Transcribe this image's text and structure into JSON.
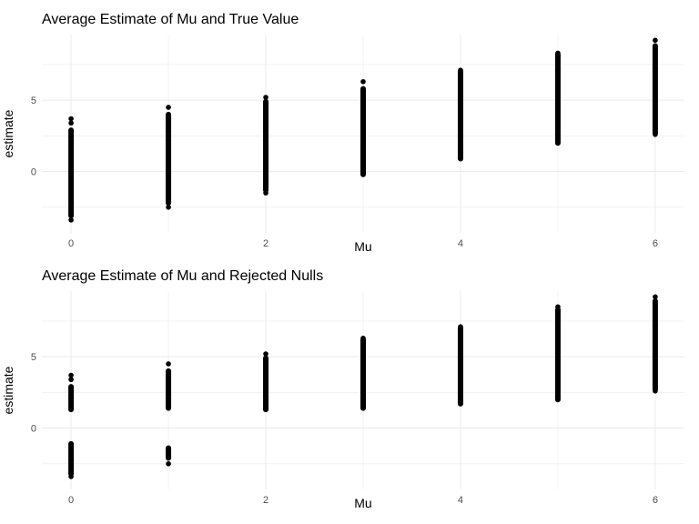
{
  "chart_data": [
    {
      "type": "scatter",
      "title": "Average Estimate of Mu and True Value",
      "xlabel": "Mu",
      "ylabel": "estimate",
      "xlim": [
        -0.3,
        6.3
      ],
      "ylim": [
        -4.3,
        9.6
      ],
      "x_ticks": [
        0,
        2,
        4,
        6
      ],
      "y_ticks": [
        0,
        5
      ],
      "grid": true,
      "series": [
        {
          "ranges": [
            {
              "x": 0,
              "segments": [
                [
                  -3.1,
                  2.9
                ]
              ],
              "points": [
                3.4,
                3.7,
                -3.4
              ]
            },
            {
              "x": 1,
              "segments": [
                [
                  -2.2,
                  4.0
                ]
              ],
              "points": [
                4.5,
                -2.5
              ]
            },
            {
              "x": 2,
              "segments": [
                [
                  -1.3,
                  4.9
                ]
              ],
              "points": [
                5.2,
                -1.5
              ]
            },
            {
              "x": 3,
              "segments": [
                [
                  -0.2,
                  5.8
                ]
              ],
              "points": [
                6.3
              ]
            },
            {
              "x": 4,
              "segments": [
                [
                  0.9,
                  7.0
                ]
              ],
              "points": [
                7.1
              ]
            },
            {
              "x": 5,
              "segments": [
                [
                  2.0,
                  8.2
                ]
              ],
              "points": [
                8.3
              ]
            },
            {
              "x": 6,
              "segments": [
                [
                  2.7,
                  8.8
                ]
              ],
              "points": [
                9.2,
                2.6
              ]
            }
          ]
        }
      ]
    },
    {
      "type": "scatter",
      "title": "Average Estimate of Mu and Rejected Nulls",
      "xlabel": "Mu",
      "ylabel": "estimate",
      "xlim": [
        -0.3,
        6.3
      ],
      "ylim": [
        -4.3,
        9.6
      ],
      "x_ticks": [
        0,
        2,
        4,
        6
      ],
      "y_ticks": [
        0,
        5
      ],
      "grid": true,
      "series": [
        {
          "ranges": [
            {
              "x": 0,
              "segments": [
                [
                  -3.2,
                  -1.1
                ],
                [
                  1.3,
                  2.9
                ]
              ],
              "points": [
                3.4,
                3.7,
                -3.4
              ]
            },
            {
              "x": 1,
              "segments": [
                [
                  -2.1,
                  -1.4
                ],
                [
                  1.4,
                  4.0
                ]
              ],
              "points": [
                4.5,
                -2.5
              ]
            },
            {
              "x": 2,
              "segments": [
                [
                  1.3,
                  4.9
                ]
              ],
              "points": [
                5.2
              ]
            },
            {
              "x": 3,
              "segments": [
                [
                  1.4,
                  6.2
                ]
              ],
              "points": [
                6.3
              ]
            },
            {
              "x": 4,
              "segments": [
                [
                  1.7,
                  7.0
                ]
              ],
              "points": [
                7.1
              ]
            },
            {
              "x": 5,
              "segments": [
                [
                  2.0,
                  8.3
                ]
              ],
              "points": [
                8.5
              ]
            },
            {
              "x": 6,
              "segments": [
                [
                  2.7,
                  8.9
                ]
              ],
              "points": [
                9.2,
                2.6
              ]
            }
          ]
        }
      ]
    }
  ]
}
